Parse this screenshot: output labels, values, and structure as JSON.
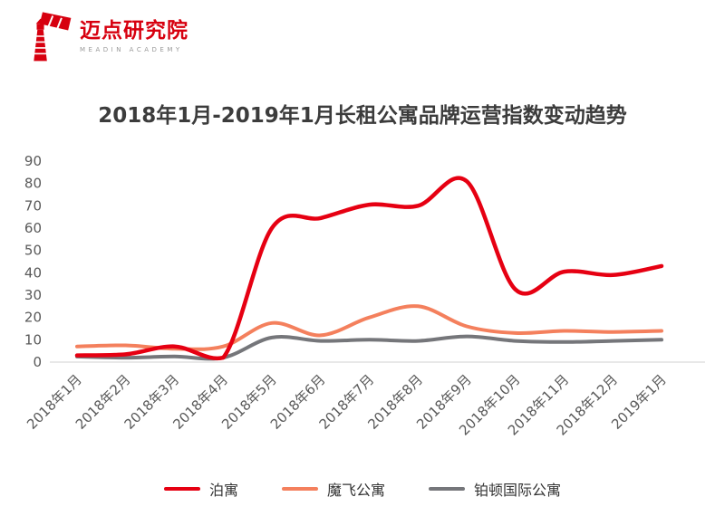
{
  "logo": {
    "brand": "迈点研究院",
    "subtitle": "MEADIN ACADEMY",
    "color": "#d7000f"
  },
  "title": "2018年1月-2019年1月长租公寓品牌运营指数变动趋势",
  "chart_data": {
    "type": "line",
    "title": "2018年1月-2019年1月长租公寓品牌运营指数变动趋势",
    "categories": [
      "2018年1月",
      "2018年2月",
      "2018年3月",
      "2018年4月",
      "2018年5月",
      "2018年6月",
      "2018年7月",
      "2018年8月",
      "2018年9月",
      "2018年10月",
      "2018年11月",
      "2018年12月",
      "2019年1月"
    ],
    "series": [
      {
        "name": "泊寓",
        "color": "#e60012",
        "stroke_width": 4.5,
        "values": [
          3,
          3.5,
          7,
          2,
          60,
          64.5,
          70.5,
          70,
          81,
          32.5,
          40.5,
          39,
          43
        ]
      },
      {
        "name": "魔飞公寓",
        "color": "#f4805d",
        "stroke_width": 4,
        "values": [
          7,
          7.5,
          6,
          7,
          17.5,
          12,
          20,
          25,
          16,
          13,
          14,
          13.5,
          14
        ]
      },
      {
        "name": "铂顿国际公寓",
        "color": "#75767a",
        "stroke_width": 4,
        "values": [
          2.5,
          2,
          2.5,
          2,
          11,
          9.5,
          10,
          9.5,
          11.5,
          9.5,
          9,
          9.5,
          10
        ]
      }
    ],
    "xlabel": "",
    "ylabel": "",
    "ylim": [
      0,
      90
    ],
    "yticks": [
      0,
      10,
      20,
      30,
      40,
      50,
      60,
      70,
      80,
      90
    ],
    "grid": false,
    "legend_position": "bottom",
    "axis_color": "#d0d0d0",
    "tick_color": "#595959"
  }
}
